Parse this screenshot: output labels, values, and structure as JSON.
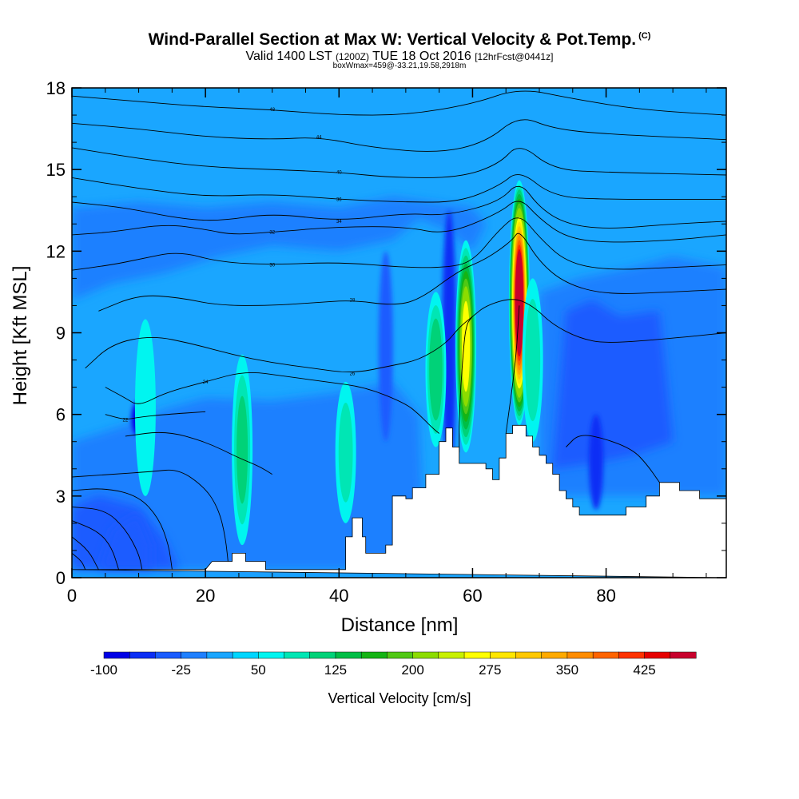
{
  "chart_data": {
    "type": "heatmap",
    "title": "Wind-Parallel Section at Max W: Vertical Velocity & Pot.Temp.",
    "title_mark": "(C)",
    "subtitle_main_a": "Valid 1400 LST",
    "subtitle_small_a": "(1200Z)",
    "subtitle_main_b": "TUE 18 Oct 2016",
    "subtitle_small_b": "[12hrFcst@0441z]",
    "subtitle2": "boxWmax=459@-33.21,19.58,2918m",
    "xlabel": "Distance [nm]",
    "ylabel": "Height [Kft MSL]",
    "xlim": [
      0,
      98
    ],
    "ylim": [
      0,
      18
    ],
    "x_ticks": [
      0,
      20,
      40,
      60,
      80
    ],
    "y_ticks": [
      0,
      3,
      6,
      9,
      12,
      15,
      18
    ],
    "colorbar": {
      "title": "Vertical Velocity [cm/s]",
      "range": [
        -100,
        475
      ],
      "labels": [
        -100,
        -25,
        50,
        125,
        200,
        275,
        350,
        425
      ],
      "colors": [
        "#0000e6",
        "#0b2ef5",
        "#1a5cff",
        "#1f80ff",
        "#1aa6ff",
        "#00d6ff",
        "#00f5f0",
        "#00e6b4",
        "#00d278",
        "#00be46",
        "#14b414",
        "#50c814",
        "#8cdc00",
        "#c8f000",
        "#ffff00",
        "#ffe600",
        "#ffc800",
        "#ffaa00",
        "#ff8c00",
        "#ff6400",
        "#ff3200",
        "#e60000",
        "#c8002d"
      ]
    },
    "terrain": [
      [
        0,
        0.3
      ],
      [
        20,
        0.3
      ],
      [
        21,
        0.6
      ],
      [
        24,
        0.6
      ],
      [
        24,
        0.9
      ],
      [
        26,
        0.9
      ],
      [
        26,
        0.6
      ],
      [
        29,
        0.6
      ],
      [
        29,
        0.3
      ],
      [
        41,
        0.3
      ],
      [
        41,
        1.5
      ],
      [
        42,
        1.5
      ],
      [
        42,
        2.2
      ],
      [
        43.5,
        2.2
      ],
      [
        43.5,
        1.5
      ],
      [
        44,
        1.5
      ],
      [
        44,
        0.9
      ],
      [
        47,
        0.9
      ],
      [
        47,
        1.2
      ],
      [
        48,
        1.2
      ],
      [
        48,
        3.0
      ],
      [
        50,
        3.0
      ],
      [
        50,
        2.9
      ],
      [
        51,
        2.9
      ],
      [
        51,
        3.3
      ],
      [
        53,
        3.3
      ],
      [
        53,
        3.8
      ],
      [
        55,
        3.8
      ],
      [
        55,
        5.0
      ],
      [
        56,
        5.0
      ],
      [
        56,
        5.5
      ],
      [
        57,
        5.5
      ],
      [
        57,
        4.8
      ],
      [
        58,
        4.8
      ],
      [
        58,
        4.2
      ],
      [
        62,
        4.2
      ],
      [
        62,
        4.0
      ],
      [
        63,
        4.0
      ],
      [
        63,
        3.6
      ],
      [
        64,
        3.6
      ],
      [
        64,
        4.4
      ],
      [
        65,
        4.4
      ],
      [
        65,
        5.3
      ],
      [
        66,
        5.3
      ],
      [
        66,
        5.6
      ],
      [
        68,
        5.6
      ],
      [
        68,
        5.2
      ],
      [
        69,
        5.2
      ],
      [
        69,
        4.8
      ],
      [
        70,
        4.8
      ],
      [
        70,
        4.5
      ],
      [
        71,
        4.5
      ],
      [
        71,
        4.2
      ],
      [
        72,
        4.2
      ],
      [
        72,
        3.8
      ],
      [
        73,
        3.8
      ],
      [
        73,
        3.2
      ],
      [
        74,
        3.2
      ],
      [
        74,
        2.9
      ],
      [
        75,
        2.9
      ],
      [
        75,
        2.6
      ],
      [
        76,
        2.6
      ],
      [
        76,
        2.3
      ],
      [
        83,
        2.3
      ],
      [
        83,
        2.6
      ],
      [
        86,
        2.6
      ],
      [
        86,
        3.0
      ],
      [
        88,
        3.0
      ],
      [
        88,
        3.5
      ],
      [
        91,
        3.5
      ],
      [
        91,
        3.2
      ],
      [
        94,
        3.2
      ],
      [
        94,
        2.9
      ],
      [
        98,
        2.9
      ],
      [
        98,
        0
      ]
    ],
    "updrafts": [
      {
        "x": 67,
        "ymin": 5.6,
        "ymax": 14.6,
        "peak": 459
      },
      {
        "x": 59,
        "ymin": 4.6,
        "ymax": 12.4,
        "peak": 250
      },
      {
        "x": 54.5,
        "ymin": 4.8,
        "ymax": 10.5,
        "peak": 120
      },
      {
        "x": 25.5,
        "ymin": 1.2,
        "ymax": 8.2,
        "peak": 100
      },
      {
        "x": 41,
        "ymin": 2.0,
        "ymax": 7.2,
        "peak": 80
      },
      {
        "x": 11,
        "ymin": 3.0,
        "ymax": 9.5,
        "peak": 65
      },
      {
        "x": 69,
        "ymin": 5.0,
        "ymax": 11.0,
        "peak": 90
      }
    ],
    "downdrafts": [
      {
        "x": 56.5,
        "ymin": 3.8,
        "ymax": 13.5,
        "value": -60
      },
      {
        "x": 78.5,
        "ymin": 2.5,
        "ymax": 6.0,
        "value": -70
      },
      {
        "x": 47,
        "ymin": 5.0,
        "ymax": 12.0,
        "value": -50
      },
      {
        "x": 10,
        "ymin": 5.2,
        "ymax": 6.5,
        "value": -80
      }
    ],
    "isentropes": [
      {
        "label": "48",
        "points": [
          [
            0,
            17.7
          ],
          [
            10,
            17.5
          ],
          [
            20,
            17.3
          ],
          [
            30,
            17.2
          ],
          [
            40,
            17.0
          ],
          [
            50,
            17.0
          ],
          [
            60,
            17.4
          ],
          [
            67,
            18.0
          ],
          [
            75,
            17.6
          ],
          [
            85,
            17.2
          ],
          [
            98,
            17.0
          ]
        ]
      },
      {
        "label": "44",
        "points": [
          [
            0,
            16.7
          ],
          [
            10,
            16.5
          ],
          [
            20,
            16.2
          ],
          [
            30,
            16.1
          ],
          [
            37,
            16.2
          ],
          [
            45,
            15.8
          ],
          [
            55,
            15.6
          ],
          [
            62,
            16.0
          ],
          [
            67,
            17.0
          ],
          [
            72,
            16.5
          ],
          [
            80,
            16.3
          ],
          [
            98,
            16.1
          ]
        ]
      },
      {
        "label": "40",
        "points": [
          [
            0,
            15.8
          ],
          [
            10,
            15.4
          ],
          [
            20,
            15.1
          ],
          [
            30,
            15.0
          ],
          [
            40,
            14.9
          ],
          [
            48,
            14.7
          ],
          [
            58,
            14.7
          ],
          [
            64,
            15.2
          ],
          [
            67,
            16.0
          ],
          [
            72,
            15.0
          ],
          [
            80,
            14.9
          ],
          [
            98,
            14.8
          ]
        ]
      },
      {
        "label": "36",
        "points": [
          [
            0,
            14.7
          ],
          [
            10,
            14.3
          ],
          [
            20,
            14.0
          ],
          [
            30,
            14.1
          ],
          [
            40,
            13.9
          ],
          [
            50,
            13.8
          ],
          [
            58,
            13.8
          ],
          [
            64,
            14.4
          ],
          [
            67,
            15.0
          ],
          [
            72,
            14.0
          ],
          [
            80,
            13.9
          ],
          [
            98,
            13.9
          ]
        ]
      },
      {
        "label": "34",
        "points": [
          [
            0,
            13.8
          ],
          [
            8,
            13.6
          ],
          [
            16,
            13.2
          ],
          [
            22,
            13.1
          ],
          [
            30,
            13.4
          ],
          [
            40,
            13.1
          ],
          [
            50,
            13.4
          ],
          [
            56,
            13.3
          ],
          [
            64,
            13.8
          ],
          [
            67,
            14.6
          ],
          [
            70,
            13.6
          ],
          [
            74,
            13.0
          ],
          [
            80,
            12.8
          ],
          [
            90,
            13.0
          ],
          [
            98,
            13.1
          ]
        ]
      },
      {
        "label": "32",
        "points": [
          [
            0,
            12.6
          ],
          [
            6,
            12.7
          ],
          [
            14,
            13.0
          ],
          [
            20,
            12.8
          ],
          [
            24,
            12.6
          ],
          [
            30,
            12.7
          ],
          [
            40,
            12.9
          ],
          [
            50,
            12.9
          ],
          [
            56,
            12.6
          ],
          [
            64,
            13.4
          ],
          [
            67,
            14.0
          ],
          [
            70,
            13.2
          ],
          [
            74,
            12.5
          ],
          [
            80,
            12.3
          ],
          [
            90,
            12.4
          ],
          [
            98,
            12.6
          ]
        ]
      },
      {
        "label": "30",
        "points": [
          [
            0,
            11.3
          ],
          [
            6,
            11.5
          ],
          [
            10,
            11.7
          ],
          [
            16,
            12.0
          ],
          [
            22,
            11.6
          ],
          [
            30,
            11.5
          ],
          [
            40,
            11.6
          ],
          [
            50,
            11.4
          ],
          [
            56,
            11.4
          ],
          [
            60,
            11.6
          ],
          [
            64,
            12.8
          ],
          [
            67,
            13.4
          ],
          [
            70,
            12.5
          ],
          [
            74,
            11.6
          ],
          [
            80,
            11.3
          ],
          [
            90,
            11.4
          ],
          [
            98,
            11.5
          ]
        ]
      },
      {
        "label": "28",
        "points": [
          [
            4,
            9.8
          ],
          [
            10,
            10.4
          ],
          [
            16,
            10.3
          ],
          [
            22,
            10.0
          ],
          [
            30,
            10.0
          ],
          [
            36,
            10.1
          ],
          [
            42,
            10.2
          ],
          [
            48,
            10.0
          ],
          [
            52,
            10.2
          ],
          [
            58,
            11.3
          ],
          [
            62,
            11.7
          ],
          [
            66,
            12.4
          ],
          [
            67,
            12.8
          ],
          [
            70,
            11.6
          ],
          [
            74,
            10.8
          ],
          [
            80,
            10.4
          ],
          [
            90,
            10.5
          ],
          [
            98,
            10.6
          ]
        ]
      },
      {
        "label": "26",
        "points": [
          [
            2,
            7.7
          ],
          [
            6,
            8.6
          ],
          [
            12,
            8.9
          ],
          [
            18,
            8.6
          ],
          [
            24,
            8.2
          ],
          [
            30,
            7.9
          ],
          [
            36,
            7.7
          ],
          [
            42,
            7.5
          ],
          [
            48,
            7.8
          ],
          [
            52,
            8.0
          ],
          [
            56,
            8.6
          ],
          [
            58,
            9.2
          ],
          [
            60,
            9.6
          ],
          [
            62,
            10.0
          ],
          [
            66,
            10.3
          ],
          [
            69,
            10.0
          ],
          [
            72,
            9.3
          ],
          [
            76,
            8.8
          ],
          [
            80,
            8.6
          ],
          [
            90,
            8.8
          ],
          [
            98,
            9.0
          ]
        ]
      },
      {
        "label": "24",
        "points": [
          [
            5,
            7.0
          ],
          [
            8,
            6.6
          ],
          [
            10,
            6.3
          ],
          [
            14,
            6.8
          ],
          [
            20,
            7.2
          ],
          [
            26,
            7.6
          ],
          [
            32,
            7.4
          ],
          [
            38,
            7.2
          ],
          [
            44,
            7.0
          ],
          [
            50,
            6.4
          ],
          [
            52,
            6.0
          ],
          [
            54,
            5.5
          ],
          [
            55,
            5.3
          ]
        ]
      },
      {
        "label": "22",
        "points": [
          [
            5,
            6.0
          ],
          [
            8,
            5.8
          ],
          [
            10,
            5.9
          ],
          [
            14,
            6.0
          ],
          [
            20,
            6.1
          ]
        ]
      },
      {
        "label": "",
        "points": [
          [
            8,
            5.2
          ],
          [
            14,
            5.4
          ],
          [
            20,
            5.0
          ],
          [
            25,
            4.4
          ],
          [
            28,
            4.1
          ],
          [
            30,
            3.8
          ]
        ]
      },
      {
        "label": "",
        "points": [
          [
            58,
            4.6
          ],
          [
            58,
            6.0
          ],
          [
            58.5,
            8.0
          ],
          [
            59,
            9.3
          ],
          [
            60,
            9.6
          ]
        ]
      },
      {
        "label": "",
        "points": [
          [
            65,
            5.3
          ],
          [
            66.5,
            8.0
          ],
          [
            67,
            10.0
          ]
        ]
      },
      {
        "label": "",
        "points": [
          [
            0,
            3.7
          ],
          [
            6,
            3.8
          ],
          [
            12,
            3.9
          ],
          [
            16,
            4.0
          ],
          [
            20,
            3.3
          ],
          [
            22,
            2.5
          ],
          [
            23,
            1.5
          ],
          [
            23.5,
            0.3
          ]
        ]
      },
      {
        "label": "",
        "points": [
          [
            0,
            3.2
          ],
          [
            5,
            3.3
          ],
          [
            10,
            3.0
          ],
          [
            13,
            2.2
          ],
          [
            14.5,
            1.2
          ],
          [
            15,
            0.3
          ]
        ]
      },
      {
        "label": "",
        "points": [
          [
            0,
            2.6
          ],
          [
            5,
            2.5
          ],
          [
            8,
            1.8
          ],
          [
            10,
            0.9
          ],
          [
            10.5,
            0.3
          ]
        ]
      },
      {
        "label": "",
        "points": [
          [
            0,
            2.1
          ],
          [
            4,
            1.7
          ],
          [
            6,
            1.1
          ],
          [
            7,
            0.3
          ]
        ]
      },
      {
        "label": "",
        "points": [
          [
            0,
            1.5
          ],
          [
            2.5,
            1.0
          ],
          [
            4,
            0.3
          ]
        ]
      },
      {
        "label": "",
        "points": [
          [
            0,
            0.9
          ],
          [
            1.5,
            0.6
          ],
          [
            2,
            0.3
          ]
        ]
      },
      {
        "label": "",
        "points": [
          [
            74,
            4.8
          ],
          [
            76,
            5.3
          ],
          [
            80,
            5.1
          ],
          [
            84,
            4.7
          ],
          [
            86,
            4.2
          ],
          [
            88,
            3.5
          ]
        ]
      }
    ]
  }
}
